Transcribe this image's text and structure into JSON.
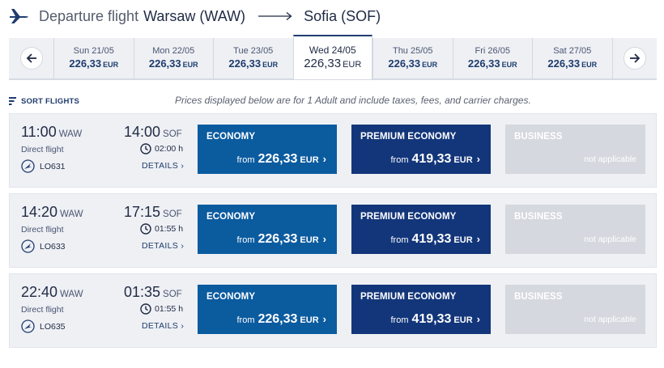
{
  "header": {
    "label": "Departure flight",
    "origin": "Warsaw (WAW)",
    "destination": "Sofia (SOF)"
  },
  "dates": [
    {
      "day": "Sun 21/05",
      "price": "226,33",
      "currency": "EUR"
    },
    {
      "day": "Mon 22/05",
      "price": "226,33",
      "currency": "EUR"
    },
    {
      "day": "Tue 23/05",
      "price": "226,33",
      "currency": "EUR"
    },
    {
      "day": "Wed 24/05",
      "price": "226,33",
      "currency": "EUR",
      "selected": true
    },
    {
      "day": "Thu 25/05",
      "price": "226,33",
      "currency": "EUR"
    },
    {
      "day": "Fri 26/05",
      "price": "226,33",
      "currency": "EUR"
    },
    {
      "day": "Sat 27/05",
      "price": "226,33",
      "currency": "EUR"
    }
  ],
  "sort": {
    "label": "SORT FLIGHTS",
    "note": "Prices displayed below are for 1 Adult and include taxes, fees, and carrier charges."
  },
  "flights": [
    {
      "dep_time": "11:00",
      "dep_code": "WAW",
      "arr_time": "14:00",
      "arr_code": "SOF",
      "direct": "Direct flight",
      "duration": "02:00 h",
      "flight_no": "LO631",
      "details": "DETAILS",
      "economy": {
        "name": "ECONOMY",
        "from": "from",
        "price": "226,33",
        "currency": "EUR"
      },
      "premium": {
        "name": "PREMIUM ECONOMY",
        "from": "from",
        "price": "419,33",
        "currency": "EUR"
      },
      "business": {
        "name": "BUSINESS",
        "status": "not applicable"
      }
    },
    {
      "dep_time": "14:20",
      "dep_code": "WAW",
      "arr_time": "17:15",
      "arr_code": "SOF",
      "direct": "Direct flight",
      "duration": "01:55 h",
      "flight_no": "LO633",
      "details": "DETAILS",
      "economy": {
        "name": "ECONOMY",
        "from": "from",
        "price": "226,33",
        "currency": "EUR"
      },
      "premium": {
        "name": "PREMIUM ECONOMY",
        "from": "from",
        "price": "419,33",
        "currency": "EUR"
      },
      "business": {
        "name": "BUSINESS",
        "status": "not applicable"
      }
    },
    {
      "dep_time": "22:40",
      "dep_code": "WAW",
      "arr_time": "01:35",
      "arr_code": "SOF",
      "direct": "Direct flight",
      "duration": "01:55 h",
      "flight_no": "LO635",
      "details": "DETAILS",
      "economy": {
        "name": "ECONOMY",
        "from": "from",
        "price": "226,33",
        "currency": "EUR"
      },
      "premium": {
        "name": "PREMIUM ECONOMY",
        "from": "from",
        "price": "419,33",
        "currency": "EUR"
      },
      "business": {
        "name": "BUSINESS",
        "status": "not applicable"
      }
    }
  ],
  "colors": {
    "economy": "#0b5b9f",
    "premium": "#13367a",
    "business_disabled": "#d5d8de",
    "brand_navy": "#1f3c6e"
  },
  "icons": [
    "plane-icon",
    "arrow-right-icon",
    "arrow-left-icon",
    "sort-icon",
    "clock-icon",
    "airline-logo-icon",
    "chevron-right-icon"
  ]
}
